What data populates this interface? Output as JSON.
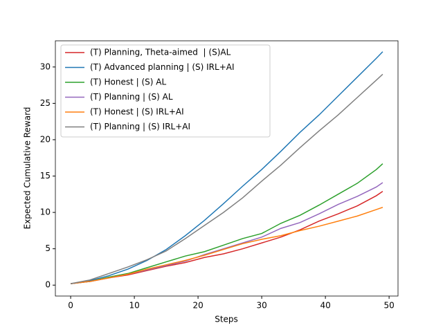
{
  "chart_data": {
    "type": "line",
    "xlabel": "Steps",
    "ylabel": "Expected Cumulative Reward",
    "x": [
      0,
      3,
      6,
      9,
      12,
      15,
      18,
      21,
      24,
      27,
      30,
      33,
      36,
      39,
      42,
      45,
      48,
      49
    ],
    "series": [
      {
        "name": "(T) Planning, Theta-aimed  | (S)AL",
        "color": "#d62728",
        "values": [
          0.2,
          0.5,
          1.0,
          1.4,
          2.0,
          2.6,
          3.1,
          3.8,
          4.3,
          5.0,
          5.8,
          6.6,
          7.6,
          8.8,
          9.8,
          10.9,
          12.3,
          12.9
        ]
      },
      {
        "name": "(T) Advanced planning | (S) IRL+AI",
        "color": "#1f77b4",
        "values": [
          0.2,
          0.6,
          1.3,
          2.2,
          3.4,
          4.9,
          6.8,
          8.9,
          11.2,
          13.6,
          15.9,
          18.4,
          21.0,
          23.4,
          26.0,
          28.6,
          31.2,
          32.1
        ]
      },
      {
        "name": "(T) Honest | (S) AL",
        "color": "#2ca02c",
        "values": [
          0.2,
          0.5,
          1.1,
          1.6,
          2.4,
          3.2,
          4.0,
          4.6,
          5.5,
          6.4,
          7.1,
          8.5,
          9.6,
          11.0,
          12.5,
          14.0,
          15.9,
          16.7
        ]
      },
      {
        "name": "(T) Planning | (S) AL",
        "color": "#9467bd",
        "values": [
          0.2,
          0.5,
          1.0,
          1.5,
          2.1,
          2.7,
          3.3,
          4.2,
          5.0,
          5.8,
          6.6,
          7.8,
          8.6,
          9.8,
          11.1,
          12.2,
          13.5,
          14.1
        ]
      },
      {
        "name": "(T) Honest | (S) IRL+AI",
        "color": "#ff7f0e",
        "values": [
          0.2,
          0.5,
          1.0,
          1.5,
          2.2,
          2.8,
          3.4,
          4.1,
          4.9,
          5.7,
          6.3,
          6.8,
          7.5,
          8.1,
          8.8,
          9.5,
          10.4,
          10.7
        ]
      },
      {
        "name": "(T) Planning | (S) IRL+AI",
        "color": "#7f7f7f",
        "values": [
          0.2,
          0.7,
          1.6,
          2.5,
          3.5,
          4.7,
          6.4,
          8.2,
          10.0,
          12.0,
          14.3,
          16.5,
          18.9,
          21.2,
          23.4,
          25.8,
          28.2,
          29.0
        ]
      }
    ],
    "xlim": [
      -2.4,
      51.4
    ],
    "xticks": [
      0,
      10,
      20,
      30,
      40,
      50
    ],
    "ylim": [
      -1.5,
      33.6
    ],
    "yticks": [
      0,
      5,
      10,
      15,
      20,
      25,
      30
    ],
    "grid": false,
    "legend": "upper left"
  }
}
